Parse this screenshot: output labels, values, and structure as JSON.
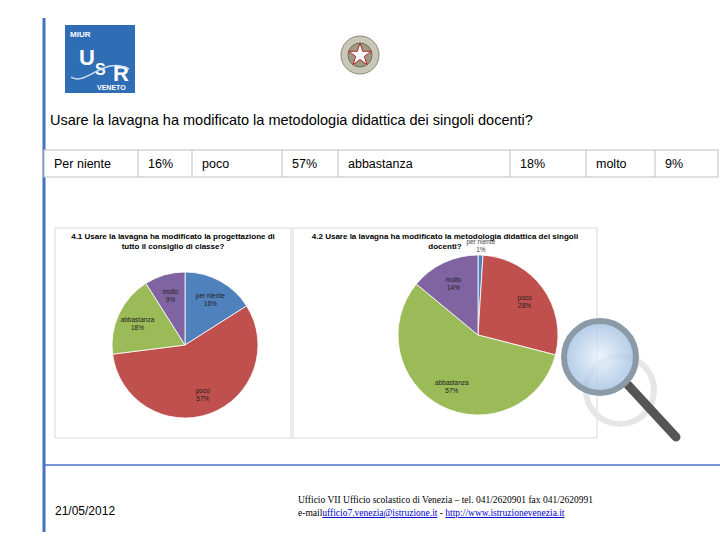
{
  "logo": {
    "top": "MIUR",
    "letters": [
      "U",
      "S",
      "R"
    ],
    "bottom": "VENETO"
  },
  "question": "Usare la lavagna ha modificato la metodologia didattica dei singoli docenti?",
  "table": {
    "cells": [
      "Per niente",
      "16%",
      "poco",
      "57%",
      "abbastanza",
      "18%",
      "molto",
      "9%"
    ]
  },
  "chart_data": [
    {
      "type": "pie",
      "title": "4.1 Usare la lavagna ha modificato la progettazione di tutto il consiglio di classe?",
      "categories": [
        "per niente",
        "poco",
        "abbastanza",
        "molto"
      ],
      "values": [
        16,
        57,
        18,
        9
      ],
      "value_labels": [
        "16%",
        "57%",
        "18%",
        "9%"
      ],
      "colors": [
        "#4f81bd",
        "#c0504d",
        "#9bbb59",
        "#8064a2"
      ],
      "data_labels": true
    },
    {
      "type": "pie",
      "title": "4.2 Usare la lavagna ha modificato la metodologia didattica dei singoli docenti?",
      "categories": [
        "per niente",
        "poco",
        "abbastanza",
        "molto"
      ],
      "values": [
        1,
        28,
        57,
        14
      ],
      "value_labels": [
        "1%",
        "28%",
        "57%",
        "14%"
      ],
      "colors": [
        "#4f81bd",
        "#c0504d",
        "#9bbb59",
        "#8064a2"
      ],
      "data_labels": true
    }
  ],
  "footer": {
    "date": "21/05/2012",
    "office": "Ufficio VII Ufficio scolastico di Venezia – tel. 041/2620901 fax 041/2620991",
    "email_prefix": "e-mail",
    "email": "ufficio7.venezia@istruzione.it",
    "separator": " - ",
    "url": "http://www.istruzionevenezia.it"
  }
}
